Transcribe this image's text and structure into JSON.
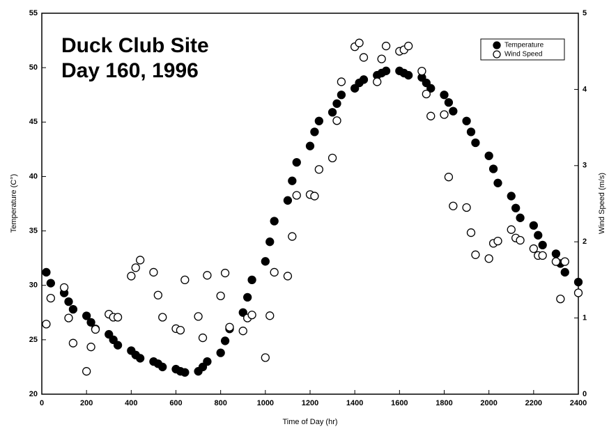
{
  "chart_data": {
    "type": "scatter",
    "annotation": [
      "Duck Club Site",
      "Day 160, 1996"
    ],
    "xlabel": "Time of Day (hr)",
    "ylabel": "Temperature (C°)",
    "y2label": "Wind Speed (m/s)",
    "x": [
      20,
      40,
      100,
      120,
      140,
      200,
      220,
      240,
      300,
      320,
      340,
      400,
      420,
      440,
      500,
      520,
      540,
      600,
      620,
      640,
      700,
      720,
      740,
      800,
      820,
      840,
      900,
      920,
      940,
      1000,
      1020,
      1040,
      1100,
      1120,
      1140,
      1200,
      1220,
      1240,
      1300,
      1320,
      1340,
      1400,
      1420,
      1440,
      1500,
      1520,
      1540,
      1600,
      1620,
      1640,
      1700,
      1720,
      1740,
      1800,
      1820,
      1840,
      1900,
      1920,
      1940,
      2000,
      2020,
      2040,
      2100,
      2120,
      2140,
      2200,
      2220,
      2240,
      2300,
      2320,
      2340,
      2400
    ],
    "series": [
      {
        "name": "Temperature",
        "color": "#000000",
        "marker": "filled",
        "values": [
          31.2,
          30.2,
          29.3,
          28.5,
          27.8,
          27.2,
          26.6,
          26.0,
          25.5,
          25.0,
          24.5,
          24.0,
          23.6,
          23.3,
          23.0,
          22.8,
          22.5,
          22.3,
          22.1,
          22.0,
          22.1,
          22.5,
          23.0,
          23.8,
          24.9,
          26.0,
          27.5,
          28.9,
          30.5,
          32.2,
          34.0,
          35.9,
          37.8,
          39.6,
          41.3,
          42.8,
          44.1,
          45.1,
          45.9,
          46.7,
          47.5,
          48.1,
          48.6,
          48.9,
          49.3,
          49.5,
          49.7,
          49.7,
          49.5,
          49.3,
          49.1,
          48.6,
          48.1,
          47.5,
          46.8,
          46.0,
          45.1,
          44.1,
          43.1,
          41.9,
          40.7,
          39.4,
          38.2,
          37.1,
          36.2,
          35.5,
          34.6,
          33.7,
          32.9,
          32.0,
          31.2,
          30.3
        ]
      },
      {
        "name": "Wind Speed",
        "color": "#000000",
        "marker": "open",
        "axis": "y2",
        "values": [
          0.92,
          1.26,
          1.4,
          1.0,
          0.67,
          0.3,
          0.62,
          0.85,
          1.05,
          1.01,
          1.01,
          1.55,
          1.66,
          1.76,
          1.6,
          1.3,
          1.01,
          0.86,
          0.84,
          1.5,
          1.02,
          0.74,
          1.56,
          1.29,
          1.59,
          0.88,
          0.83,
          1.0,
          1.04,
          0.48,
          1.03,
          1.6,
          1.55,
          2.07,
          2.61,
          2.62,
          2.6,
          2.95,
          3.1,
          3.59,
          4.1,
          4.56,
          4.61,
          4.42,
          4.1,
          4.4,
          4.57,
          4.5,
          4.52,
          4.57,
          4.24,
          3.94,
          3.65,
          3.67,
          2.85,
          2.47,
          2.45,
          2.12,
          1.83,
          1.78,
          1.98,
          2.01,
          2.16,
          2.05,
          2.02,
          1.91,
          1.82,
          1.82,
          1.74,
          1.25,
          1.74,
          1.33
        ]
      }
    ],
    "xlim": [
      0,
      2400
    ],
    "xticks": [
      0,
      200,
      400,
      600,
      800,
      1000,
      1200,
      1400,
      1600,
      1800,
      2000,
      2200,
      2400
    ],
    "ylim": [
      20,
      55
    ],
    "yticks": [
      20,
      25,
      30,
      35,
      40,
      45,
      50,
      55
    ],
    "y2lim": [
      0,
      5
    ],
    "y2ticks": [
      0,
      1,
      2,
      3,
      4,
      5
    ],
    "legend": "top-right",
    "grid": false
  }
}
